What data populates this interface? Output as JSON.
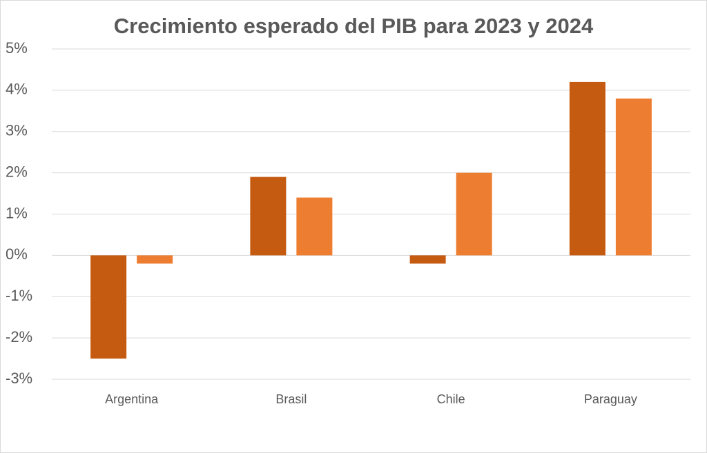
{
  "chart_data": {
    "type": "bar",
    "title": "Crecimiento esperado del PIB para 2023 y 2024",
    "categories": [
      "Argentina",
      "Brasil",
      "Chile",
      "Paraguay"
    ],
    "series": [
      {
        "color": "#c55a11",
        "values": [
          -2.5,
          1.9,
          -0.2,
          4.2
        ]
      },
      {
        "color": "#ed7d31",
        "values": [
          -0.2,
          1.4,
          2.0,
          3.8
        ]
      }
    ],
    "ylim": [
      -3,
      5
    ],
    "yticks": [
      {
        "value": 5,
        "label": "5%"
      },
      {
        "value": 4,
        "label": "4%"
      },
      {
        "value": 3,
        "label": "3%"
      },
      {
        "value": 2,
        "label": "2%"
      },
      {
        "value": 1,
        "label": "1%"
      },
      {
        "value": 0,
        "label": "0%"
      },
      {
        "value": -1,
        "label": "-1%"
      },
      {
        "value": -2,
        "label": "-2%"
      },
      {
        "value": -3,
        "label": "-3%"
      }
    ],
    "grid": true
  }
}
